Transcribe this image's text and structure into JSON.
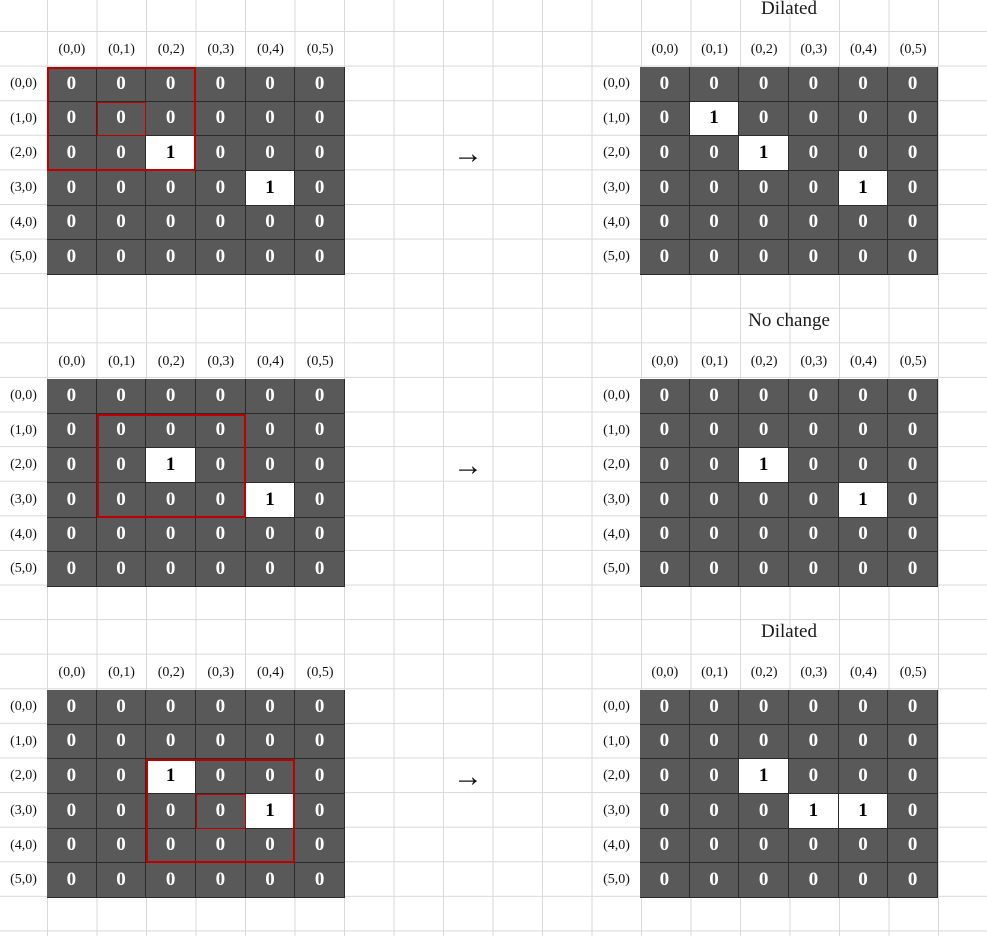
{
  "col_labels": [
    "(0,0)",
    "(0,1)",
    "(0,2)",
    "(0,3)",
    "(0,4)",
    "(0,5)"
  ],
  "row_labels": [
    "(0,0)",
    "(1,0)",
    "(2,0)",
    "(3,0)",
    "(4,0)",
    "(5,0)"
  ],
  "arrow": "→",
  "rows": [
    {
      "input": {
        "cells": [
          [
            "0",
            "0",
            "0",
            "0",
            "0",
            "0"
          ],
          [
            "0",
            "0",
            "0",
            "0",
            "0",
            "0"
          ],
          [
            "0",
            "0",
            "1",
            "0",
            "0",
            "0"
          ],
          [
            "0",
            "0",
            "0",
            "0",
            "1",
            "0"
          ],
          [
            "0",
            "0",
            "0",
            "0",
            "0",
            "0"
          ],
          [
            "0",
            "0",
            "0",
            "0",
            "0",
            "0"
          ]
        ],
        "kernel": {
          "row_start": 0,
          "col_start": 0,
          "size": 3
        },
        "center": {
          "row": 1,
          "col": 1
        }
      },
      "output": {
        "title": "Dilated",
        "cells": [
          [
            "0",
            "0",
            "0",
            "0",
            "0",
            "0"
          ],
          [
            "0",
            "1",
            "0",
            "0",
            "0",
            "0"
          ],
          [
            "0",
            "0",
            "1",
            "0",
            "0",
            "0"
          ],
          [
            "0",
            "0",
            "0",
            "0",
            "1",
            "0"
          ],
          [
            "0",
            "0",
            "0",
            "0",
            "0",
            "0"
          ],
          [
            "0",
            "0",
            "0",
            "0",
            "0",
            "0"
          ]
        ]
      }
    },
    {
      "input": {
        "cells": [
          [
            "0",
            "0",
            "0",
            "0",
            "0",
            "0"
          ],
          [
            "0",
            "0",
            "0",
            "0",
            "0",
            "0"
          ],
          [
            "0",
            "0",
            "1",
            "0",
            "0",
            "0"
          ],
          [
            "0",
            "0",
            "0",
            "0",
            "1",
            "0"
          ],
          [
            "0",
            "0",
            "0",
            "0",
            "0",
            "0"
          ],
          [
            "0",
            "0",
            "0",
            "0",
            "0",
            "0"
          ]
        ],
        "kernel": {
          "row_start": 1,
          "col_start": 1,
          "size": 3
        },
        "center": null
      },
      "output": {
        "title": "No change",
        "cells": [
          [
            "0",
            "0",
            "0",
            "0",
            "0",
            "0"
          ],
          [
            "0",
            "0",
            "0",
            "0",
            "0",
            "0"
          ],
          [
            "0",
            "0",
            "1",
            "0",
            "0",
            "0"
          ],
          [
            "0",
            "0",
            "0",
            "0",
            "1",
            "0"
          ],
          [
            "0",
            "0",
            "0",
            "0",
            "0",
            "0"
          ],
          [
            "0",
            "0",
            "0",
            "0",
            "0",
            "0"
          ]
        ]
      }
    },
    {
      "input": {
        "cells": [
          [
            "0",
            "0",
            "0",
            "0",
            "0",
            "0"
          ],
          [
            "0",
            "0",
            "0",
            "0",
            "0",
            "0"
          ],
          [
            "0",
            "0",
            "1",
            "0",
            "0",
            "0"
          ],
          [
            "0",
            "0",
            "0",
            "0",
            "1",
            "0"
          ],
          [
            "0",
            "0",
            "0",
            "0",
            "0",
            "0"
          ],
          [
            "0",
            "0",
            "0",
            "0",
            "0",
            "0"
          ]
        ],
        "kernel": {
          "row_start": 2,
          "col_start": 2,
          "size": 3
        },
        "center": {
          "row": 3,
          "col": 3
        }
      },
      "output": {
        "title": "Dilated",
        "cells": [
          [
            "0",
            "0",
            "0",
            "0",
            "0",
            "0"
          ],
          [
            "0",
            "0",
            "0",
            "0",
            "0",
            "0"
          ],
          [
            "0",
            "0",
            "1",
            "0",
            "0",
            "0"
          ],
          [
            "0",
            "0",
            "0",
            "1",
            "1",
            "0"
          ],
          [
            "0",
            "0",
            "0",
            "0",
            "0",
            "0"
          ],
          [
            "0",
            "0",
            "0",
            "0",
            "0",
            "0"
          ]
        ]
      }
    }
  ]
}
